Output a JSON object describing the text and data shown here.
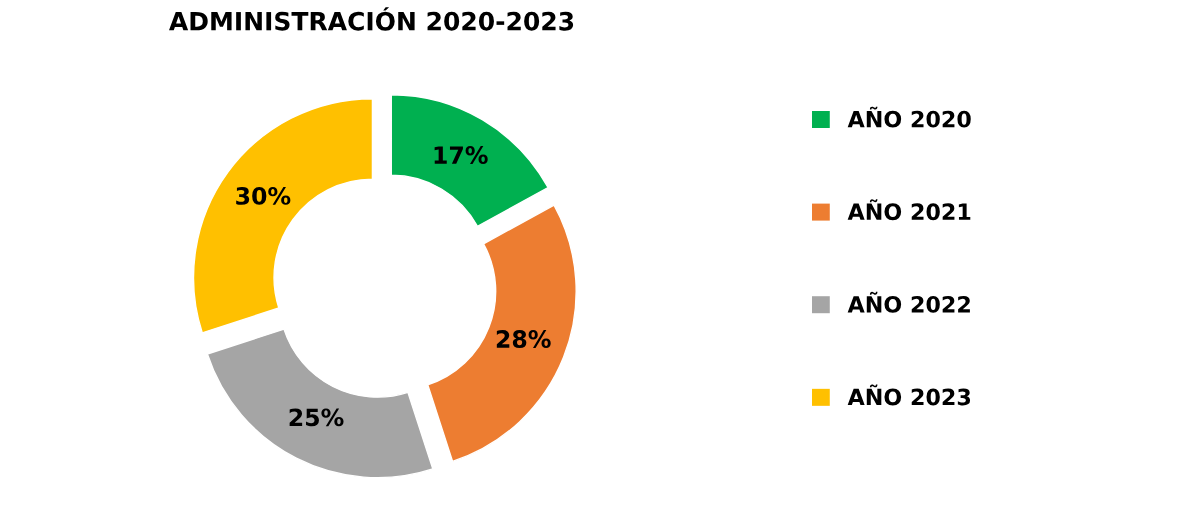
{
  "chart_data": {
    "type": "donut",
    "title": "ADMINISTRACIÓN 2020-2023",
    "categories": [
      "AÑO 2020",
      "AÑO 2021",
      "AÑO 2022",
      "AÑO 2023"
    ],
    "values": [
      17,
      28,
      25,
      30
    ],
    "colors": [
      "#00b050",
      "#ed7d31",
      "#a5a5a5",
      "#ffc000"
    ],
    "value_labels": [
      "17%",
      "28%",
      "25%",
      "30%"
    ],
    "legend": "right"
  }
}
